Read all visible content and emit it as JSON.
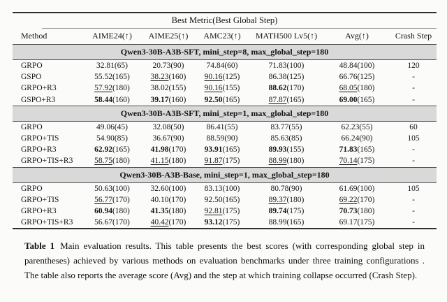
{
  "table": {
    "span_header": "Best Metric(Best Global Step)",
    "columns": [
      "Method",
      "AIME24(↑)",
      "AIME25(↑)",
      "AMC23(↑)",
      "MATH500 Lv5(↑)",
      "Avg(↑)",
      "Crash Step"
    ],
    "sections": [
      {
        "title": "Qwen3-30B-A3B-SFT, mini_step=8, max_global_step=180",
        "rows": [
          {
            "method": "GRPO",
            "cells": [
              {
                "v": "32.81",
                "s": "65",
                "f": "n"
              },
              {
                "v": "20.73",
                "s": "90",
                "f": "n"
              },
              {
                "v": "74.84",
                "s": "60",
                "f": "n"
              },
              {
                "v": "71.83",
                "s": "100",
                "f": "n"
              },
              {
                "v": "48.84",
                "s": "100",
                "f": "n"
              }
            ],
            "crash": "120"
          },
          {
            "method": "GSPO",
            "cells": [
              {
                "v": "55.52",
                "s": "165",
                "f": "n"
              },
              {
                "v": "38.23",
                "s": "160",
                "f": "u"
              },
              {
                "v": "90.16",
                "s": "125",
                "f": "u"
              },
              {
                "v": "86.38",
                "s": "125",
                "f": "n"
              },
              {
                "v": "66.76",
                "s": "125",
                "f": "n"
              }
            ],
            "crash": "-"
          },
          {
            "method": "GRPO+R3",
            "cells": [
              {
                "v": "57.92",
                "s": "180",
                "f": "u"
              },
              {
                "v": "38.02",
                "s": "155",
                "f": "n"
              },
              {
                "v": "90.16",
                "s": "155",
                "f": "u"
              },
              {
                "v": "88.62",
                "s": "170",
                "f": "b"
              },
              {
                "v": "68.05",
                "s": "180",
                "f": "u"
              }
            ],
            "crash": "-"
          },
          {
            "method": "GSPO+R3",
            "cells": [
              {
                "v": "58.44",
                "s": "160",
                "f": "b"
              },
              {
                "v": "39.17",
                "s": "160",
                "f": "b"
              },
              {
                "v": "92.50",
                "s": "165",
                "f": "b"
              },
              {
                "v": "87.87",
                "s": "165",
                "f": "u"
              },
              {
                "v": "69.00",
                "s": "165",
                "f": "b"
              }
            ],
            "crash": "-"
          }
        ]
      },
      {
        "title": "Qwen3-30B-A3B-SFT, mini_step=1, max_global_step=180",
        "rows": [
          {
            "method": "GRPO",
            "cells": [
              {
                "v": "49.06",
                "s": "45",
                "f": "n"
              },
              {
                "v": "32.08",
                "s": "50",
                "f": "n"
              },
              {
                "v": "86.41",
                "s": "55",
                "f": "n"
              },
              {
                "v": "83.77",
                "s": "55",
                "f": "n"
              },
              {
                "v": "62.23",
                "s": "55",
                "f": "n"
              }
            ],
            "crash": "60"
          },
          {
            "method": "GRPO+TIS",
            "cells": [
              {
                "v": "54.90",
                "s": "85",
                "f": "n"
              },
              {
                "v": "36.67",
                "s": "90",
                "f": "n"
              },
              {
                "v": "88.59",
                "s": "90",
                "f": "n"
              },
              {
                "v": "85.63",
                "s": "85",
                "f": "n"
              },
              {
                "v": "66.24",
                "s": "90",
                "f": "n"
              }
            ],
            "crash": "105"
          },
          {
            "method": "GRPO+R3",
            "cells": [
              {
                "v": "62.92",
                "s": "165",
                "f": "b"
              },
              {
                "v": "41.98",
                "s": "170",
                "f": "b"
              },
              {
                "v": "93.91",
                "s": "165",
                "f": "b"
              },
              {
                "v": "89.93",
                "s": "155",
                "f": "b"
              },
              {
                "v": "71.83",
                "s": "165",
                "f": "b"
              }
            ],
            "crash": "-"
          },
          {
            "method": "GRPO+TIS+R3",
            "cells": [
              {
                "v": "58.75",
                "s": "180",
                "f": "u"
              },
              {
                "v": "41.15",
                "s": "180",
                "f": "u"
              },
              {
                "v": "91.87",
                "s": "175",
                "f": "u"
              },
              {
                "v": "88.99",
                "s": "180",
                "f": "u"
              },
              {
                "v": "70.14",
                "s": "175",
                "f": "u"
              }
            ],
            "crash": "-"
          }
        ]
      },
      {
        "title": "Qwen3-30B-A3B-Base, mini_step=1, max_global_step=180",
        "rows": [
          {
            "method": "GRPO",
            "cells": [
              {
                "v": "50.63",
                "s": "100",
                "f": "n"
              },
              {
                "v": "32.60",
                "s": "100",
                "f": "n"
              },
              {
                "v": "83.13",
                "s": "100",
                "f": "n"
              },
              {
                "v": "80.78",
                "s": "90",
                "f": "n"
              },
              {
                "v": "61.69",
                "s": "100",
                "f": "n"
              }
            ],
            "crash": "105"
          },
          {
            "method": "GRPO+TIS",
            "cells": [
              {
                "v": "56.77",
                "s": "170",
                "f": "u"
              },
              {
                "v": "40.10",
                "s": "170",
                "f": "n"
              },
              {
                "v": "92.50",
                "s": "165",
                "f": "n"
              },
              {
                "v": "89.37",
                "s": "180",
                "f": "u"
              },
              {
                "v": "69.22",
                "s": "170",
                "f": "u"
              }
            ],
            "crash": "-"
          },
          {
            "method": "GRPO+R3",
            "cells": [
              {
                "v": "60.94",
                "s": "180",
                "f": "b"
              },
              {
                "v": "41.35",
                "s": "180",
                "f": "b"
              },
              {
                "v": "92.81",
                "s": "175",
                "f": "u"
              },
              {
                "v": "89.74",
                "s": "175",
                "f": "b"
              },
              {
                "v": "70.73",
                "s": "180",
                "f": "b"
              }
            ],
            "crash": "-"
          },
          {
            "method": "GRPO+TIS+R3",
            "cells": [
              {
                "v": "56.67",
                "s": "170",
                "f": "n"
              },
              {
                "v": "40.42",
                "s": "170",
                "f": "u"
              },
              {
                "v": "93.12",
                "s": "175",
                "f": "b"
              },
              {
                "v": "88.99",
                "s": "165",
                "f": "n"
              },
              {
                "v": "69.17",
                "s": "175",
                "f": "n"
              }
            ],
            "crash": "-"
          }
        ]
      }
    ]
  },
  "caption": {
    "label": "Table 1",
    "text": "Main evaluation results. This table presents the best scores (with corresponding global step in parentheses) achieved by various methods on evaluation benchmarks under three training configurations . The table also reports the average score (Avg) and the step at which training collapse occurred (Crash Step)."
  },
  "colors": {
    "section_band": "#d9d9d9",
    "rule_heavy": "#2f2f2f",
    "rule_light": "#8f8f8f",
    "text": "#141414"
  }
}
